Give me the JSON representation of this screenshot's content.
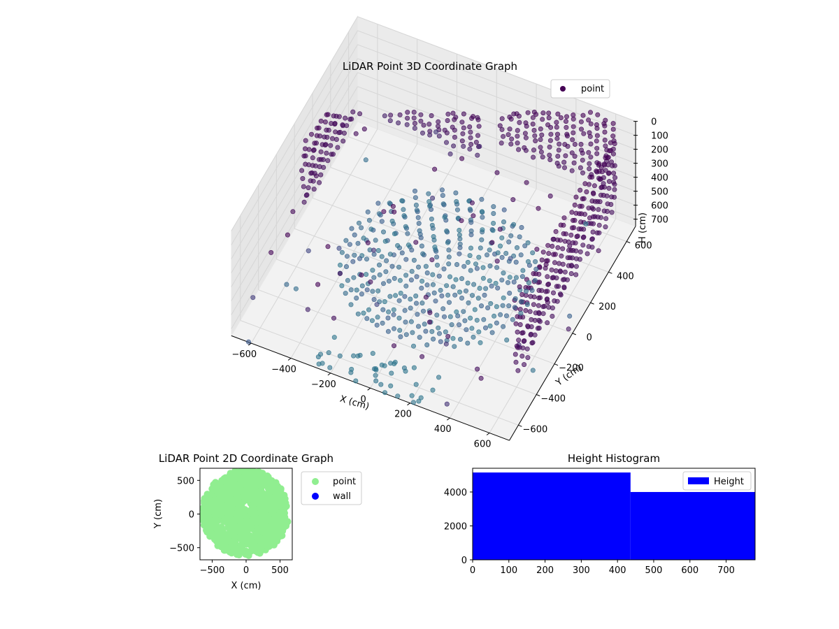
{
  "chart_data": [
    {
      "type": "scatter",
      "projection": "3d",
      "title": "LiDAR Point 3D Coordinate Graph",
      "xlabel": "X (cm)",
      "ylabel": "Y (cm)",
      "zlabel": "H (cm)",
      "xlim": [
        -700,
        700
      ],
      "ylim": [
        -700,
        700
      ],
      "zlim": [
        750,
        0
      ],
      "z_inverted": true,
      "xticks": [
        -600,
        -400,
        -200,
        0,
        200,
        400,
        600
      ],
      "yticks": [
        -600,
        -400,
        -200,
        0,
        200,
        400,
        600
      ],
      "zticks": [
        0,
        100,
        200,
        300,
        400,
        500,
        600,
        700
      ],
      "grid": true,
      "legend": {
        "position": "top-right",
        "entries": [
          "point"
        ]
      },
      "colormap": "viridis",
      "series": [
        {
          "name": "point",
          "structures": [
            {
              "kind": "wall",
              "y": 650,
              "x_range": [
                -550,
                -50
              ],
              "h_range": [
                0,
                600
              ]
            },
            {
              "kind": "wall",
              "y": 650,
              "x_range": [
                50,
                650
              ],
              "h_range": [
                0,
                450
              ]
            },
            {
              "kind": "wall",
              "x": 650,
              "y_range": [
                -500,
                600
              ],
              "h_range": [
                0,
                500
              ]
            },
            {
              "kind": "wall",
              "x": -650,
              "y_range": [
                0,
                650
              ],
              "h_range": [
                150,
                550
              ]
            },
            {
              "kind": "floor",
              "center": [
                0,
                50
              ],
              "radius": 450,
              "h": 750
            }
          ]
        }
      ]
    },
    {
      "type": "scatter",
      "title": "LiDAR Point 2D Coordinate Graph",
      "xlabel": "X (cm)",
      "ylabel": "Y (cm)",
      "xlim": [
        -680,
        680
      ],
      "ylim": [
        -680,
        680
      ],
      "xticks": [
        -500,
        0,
        500
      ],
      "yticks": [
        -500,
        0,
        500
      ],
      "legend": {
        "position": "outside-right",
        "entries": [
          "point",
          "wall"
        ]
      },
      "series": [
        {
          "name": "point",
          "color": "#90ee90",
          "shape": "disc",
          "radius": 640,
          "center": [
            -10,
            20
          ]
        },
        {
          "name": "wall",
          "color": "#0000ff",
          "points": []
        }
      ]
    },
    {
      "type": "bar",
      "subtype": "histogram",
      "title": "Height Histogram",
      "xlim": [
        0,
        780
      ],
      "ylim": [
        0,
        5400
      ],
      "xticks": [
        0,
        100,
        200,
        300,
        400,
        500,
        600,
        700
      ],
      "yticks": [
        0,
        2000,
        4000
      ],
      "legend": {
        "position": "top-right",
        "entries": [
          "Height"
        ]
      },
      "series": [
        {
          "name": "Height",
          "color": "#0000ff",
          "bins": [
            {
              "from": 0,
              "to": 436,
              "value": 5150
            },
            {
              "from": 436,
              "to": 780,
              "value": 4000
            }
          ]
        }
      ]
    }
  ]
}
